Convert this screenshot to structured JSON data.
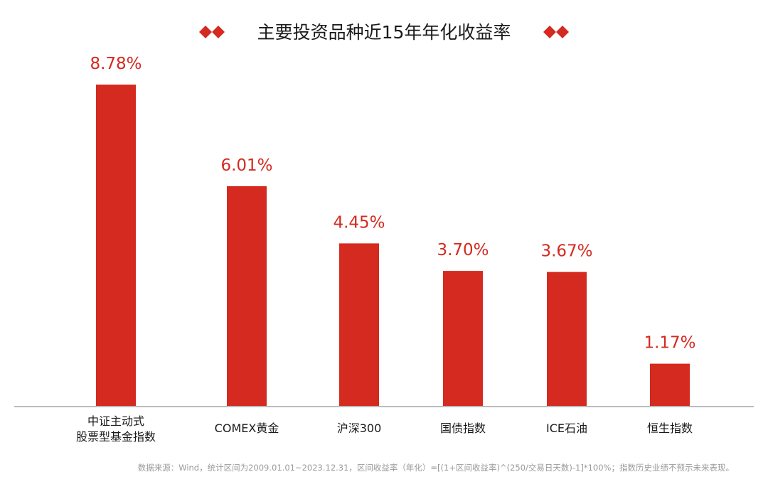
{
  "colors": {
    "bar": "#d42a20",
    "value_label": "#d42a20",
    "title": "#1a1a1a",
    "category_label": "#1a1a1a",
    "baseline": "#bbbbbb",
    "footnote": "#9a9a9a",
    "diamond": "#d42a20"
  },
  "icons": {
    "title_left": "diamond-pair-icon",
    "title_right": "diamond-pair-icon"
  },
  "footnote": "数据来源：Wind，统计区间为2009.01.01~2023.12.31，区间收益率（年化）=[(1+区间收益率)^(250/交易日天数)-1]*100%；指数历史业绩不预示未来表现。",
  "chart_data": {
    "type": "bar",
    "title": "主要投资品种近15年年化收益率",
    "xlabel": "",
    "ylabel": "",
    "unit": "%",
    "categories": [
      [
        "中证主动式",
        "股票型基金指数"
      ],
      [
        "COMEX黄金"
      ],
      [
        "沪深300"
      ],
      [
        "国债指数"
      ],
      [
        "ICE石油"
      ],
      [
        "恒生指数"
      ]
    ],
    "values": [
      8.78,
      6.01,
      4.45,
      3.7,
      3.67,
      1.17
    ],
    "value_labels": [
      "8.78%",
      "6.01%",
      "4.45%",
      "3.70%",
      "3.67%",
      "1.17%"
    ],
    "ylim": [
      0,
      9.5
    ],
    "grid": false,
    "legend": "none"
  }
}
